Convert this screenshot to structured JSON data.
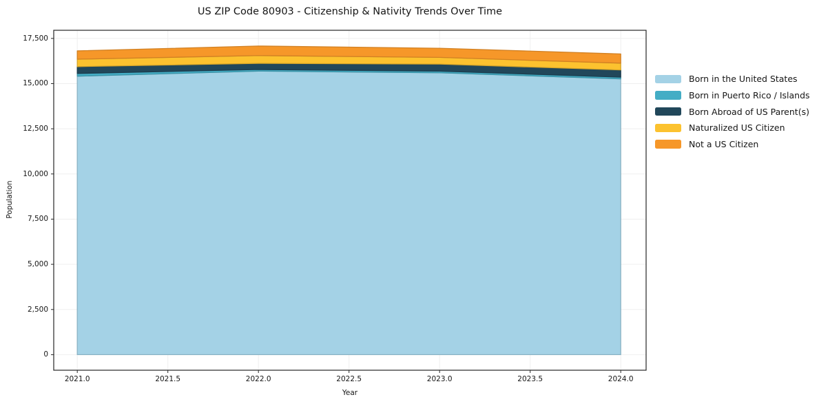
{
  "chart_data": {
    "type": "area",
    "title": "US ZIP Code 80903 - Citizenship & Nativity Trends Over Time",
    "xlabel": "Year",
    "ylabel": "Population",
    "x": [
      2021,
      2022,
      2023,
      2024
    ],
    "series": [
      {
        "name": "Born in the United States",
        "color": "#a4d2e6",
        "values": [
          15410,
          15690,
          15600,
          15260
        ]
      },
      {
        "name": "Born in Puerto Rico / Islands",
        "color": "#44adc5",
        "values": [
          150,
          90,
          90,
          95
        ]
      },
      {
        "name": "Born Abroad of US Parent(s)",
        "color": "#21475a",
        "values": [
          380,
          340,
          390,
          400
        ]
      },
      {
        "name": "Naturalized US Citizen",
        "color": "#fcc22f",
        "values": [
          410,
          430,
          370,
          375
        ]
      },
      {
        "name": "Not a US Citizen",
        "color": "#f69729",
        "values": [
          460,
          530,
          505,
          510
        ]
      }
    ],
    "stacked": true,
    "xlim": [
      2020.87,
      2024.14
    ],
    "ylim": [
      -860,
      17950
    ],
    "x_ticks": {
      "values": [
        2021.0,
        2021.5,
        2022.0,
        2022.5,
        2023.0,
        2023.5,
        2024.0
      ],
      "labels": [
        "2021.0",
        "2021.5",
        "2022.0",
        "2022.5",
        "2023.0",
        "2023.5",
        "2024.0"
      ]
    },
    "y_ticks": {
      "values": [
        0,
        2500,
        5000,
        7500,
        10000,
        12500,
        15000,
        17500
      ],
      "labels": [
        "0",
        "2,500",
        "5,000",
        "7,500",
        "10,000",
        "12,500",
        "15,000",
        "17,500"
      ]
    },
    "grid": true,
    "grid_color": "#efefef",
    "spine_color": "#262626",
    "legend_position": "outside-right"
  }
}
